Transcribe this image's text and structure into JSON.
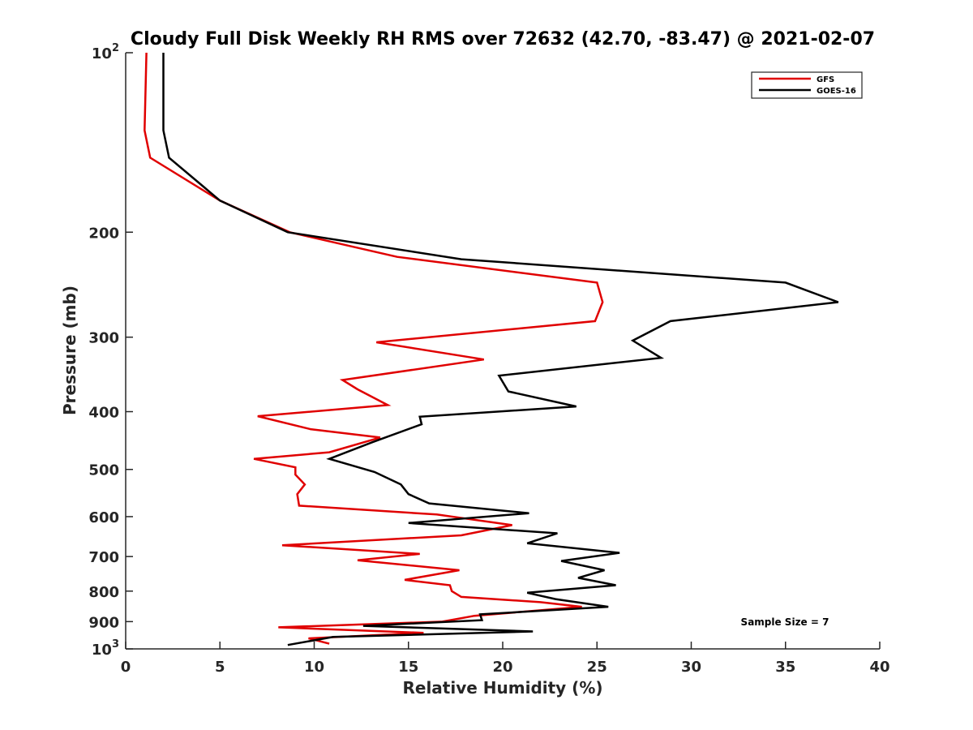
{
  "chart_data": {
    "type": "line",
    "title": "Cloudy Full Disk Weekly RH RMS over 72632 (42.70, -83.47) @ 2021-02-07",
    "xlabel": "Relative Humidity (%)",
    "ylabel": "Pressure (mb)",
    "xlim": [
      0,
      40
    ],
    "ylim": [
      100,
      1000
    ],
    "y_scale": "log",
    "y_reversed": true,
    "grid": false,
    "legend_position": "top-right",
    "x_ticks": [
      "0",
      "5",
      "10",
      "15",
      "20",
      "25",
      "30",
      "35",
      "40"
    ],
    "y_ticks": [
      {
        "value": 100,
        "base": "10",
        "exp": "2"
      },
      {
        "value": 200,
        "label": "200"
      },
      {
        "value": 300,
        "label": "300"
      },
      {
        "value": 400,
        "label": "400"
      },
      {
        "value": 500,
        "label": "500"
      },
      {
        "value": 600,
        "label": "600"
      },
      {
        "value": 700,
        "label": "700"
      },
      {
        "value": 800,
        "label": "800"
      },
      {
        "value": 900,
        "label": "900"
      },
      {
        "value": 1000,
        "base": "10",
        "exp": "3"
      }
    ],
    "annotation": "Sample Size = 7",
    "series": [
      {
        "name": "GFS",
        "color": "#e00000",
        "points": [
          [
            1.1,
            100
          ],
          [
            1.0,
            135
          ],
          [
            1.3,
            150
          ],
          [
            5.0,
            177
          ],
          [
            8.7,
            200
          ],
          [
            14.4,
            220
          ],
          [
            25.0,
            243
          ],
          [
            25.3,
            262
          ],
          [
            24.9,
            282
          ],
          [
            13.3,
            306
          ],
          [
            19.0,
            327
          ],
          [
            11.5,
            354
          ],
          [
            12.3,
            367
          ],
          [
            13.9,
            390
          ],
          [
            7.0,
            407
          ],
          [
            9.8,
            428
          ],
          [
            13.5,
            442
          ],
          [
            10.8,
            468
          ],
          [
            6.8,
            480
          ],
          [
            9.0,
            496
          ],
          [
            9.0,
            510
          ],
          [
            9.5,
            530
          ],
          [
            9.1,
            550
          ],
          [
            9.2,
            575
          ],
          [
            16.5,
            595
          ],
          [
            20.5,
            620
          ],
          [
            17.8,
            645
          ],
          [
            8.3,
            670
          ],
          [
            15.6,
            693
          ],
          [
            12.3,
            710
          ],
          [
            17.7,
            738
          ],
          [
            14.8,
            766
          ],
          [
            17.2,
            782
          ],
          [
            17.3,
            800
          ],
          [
            17.8,
            818
          ],
          [
            22.0,
            835
          ],
          [
            24.2,
            850
          ],
          [
            18.5,
            880
          ],
          [
            16.8,
            900
          ],
          [
            8.1,
            920
          ],
          [
            15.8,
            940
          ],
          [
            9.7,
            960
          ],
          [
            10.8,
            980
          ]
        ]
      },
      {
        "name": "GOES-16",
        "color": "#000000",
        "points": [
          [
            2.0,
            100
          ],
          [
            2.0,
            135
          ],
          [
            2.3,
            150
          ],
          [
            5.0,
            177
          ],
          [
            8.6,
            200
          ],
          [
            17.8,
            222
          ],
          [
            35.0,
            243
          ],
          [
            37.8,
            262
          ],
          [
            28.9,
            282
          ],
          [
            26.9,
            304
          ],
          [
            28.4,
            325
          ],
          [
            19.8,
            348
          ],
          [
            20.3,
            370
          ],
          [
            23.9,
            392
          ],
          [
            15.6,
            408
          ],
          [
            15.7,
            420
          ],
          [
            13.1,
            450
          ],
          [
            10.8,
            480
          ],
          [
            13.2,
            505
          ],
          [
            14.6,
            530
          ],
          [
            15.0,
            550
          ],
          [
            16.1,
            570
          ],
          [
            21.4,
            592
          ],
          [
            15.0,
            615
          ],
          [
            22.9,
            640
          ],
          [
            21.3,
            665
          ],
          [
            26.2,
            690
          ],
          [
            23.1,
            712
          ],
          [
            25.4,
            738
          ],
          [
            24.0,
            760
          ],
          [
            26.0,
            782
          ],
          [
            21.3,
            805
          ],
          [
            22.8,
            825
          ],
          [
            25.6,
            850
          ],
          [
            18.8,
            875
          ],
          [
            18.9,
            895
          ],
          [
            12.6,
            915
          ],
          [
            21.6,
            935
          ],
          [
            11.0,
            955
          ],
          [
            8.6,
            985
          ]
        ]
      }
    ]
  }
}
